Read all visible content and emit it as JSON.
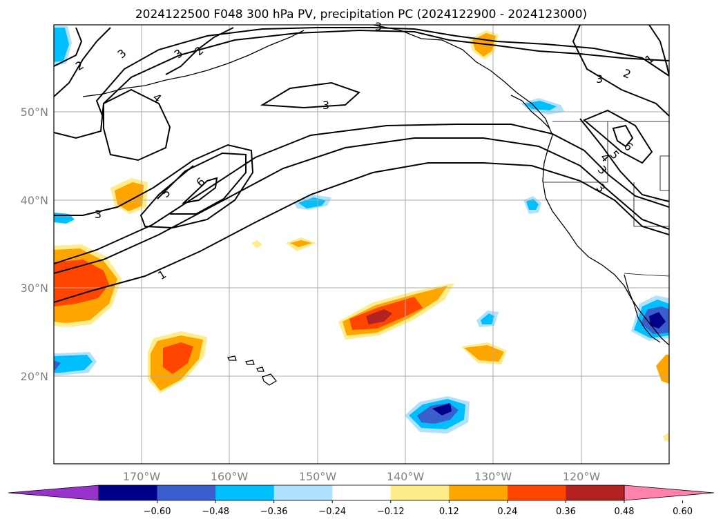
{
  "title": "2024122500 F048 300 hPa PV, precipitation PC (2024122900 - 2024123000)",
  "map": {
    "lat_labels": [
      "50°N",
      "40°N",
      "30°N",
      "20°N"
    ],
    "lon_labels": [
      "170°W",
      "160°W",
      "150°W",
      "140°W",
      "130°W",
      "120°W"
    ],
    "gridline_color": "#aaaaaa"
  },
  "contours": {
    "field": "300 hPa PV",
    "labels": [
      "1",
      "2",
      "3",
      "3",
      "3",
      "4",
      "5",
      "6",
      "3",
      "1",
      "2",
      "3",
      "2",
      "3",
      "4",
      "5",
      "6",
      "3",
      "3"
    ]
  },
  "shading": {
    "field": "precipitation PC",
    "colors": {
      "extend_low": "#9932cc",
      "neg_060": "#00008b",
      "neg_048": "#3a5fcd",
      "neg_036": "#00bfff",
      "neg_024": "#b0e2ff",
      "neutral": "#ffffff",
      "pos_012": "#ffec8b",
      "pos_024": "#ffa500",
      "pos_036": "#ff4500",
      "pos_048": "#b22222",
      "extend_high": "#ff82ab"
    }
  },
  "colorbar": {
    "ticks": [
      "−0.60",
      "−0.48",
      "−0.36",
      "−0.24",
      "−0.12",
      "0.12",
      "0.24",
      "0.36",
      "0.48",
      "0.60"
    ],
    "segment_colors": [
      "#00008b",
      "#3a5fcd",
      "#00bfff",
      "#b0e2ff",
      "#ffffff",
      "#ffec8b",
      "#ffa500",
      "#ff4500",
      "#b22222"
    ],
    "extend_low_color": "#9932cc",
    "extend_high_color": "#ff82ab"
  }
}
